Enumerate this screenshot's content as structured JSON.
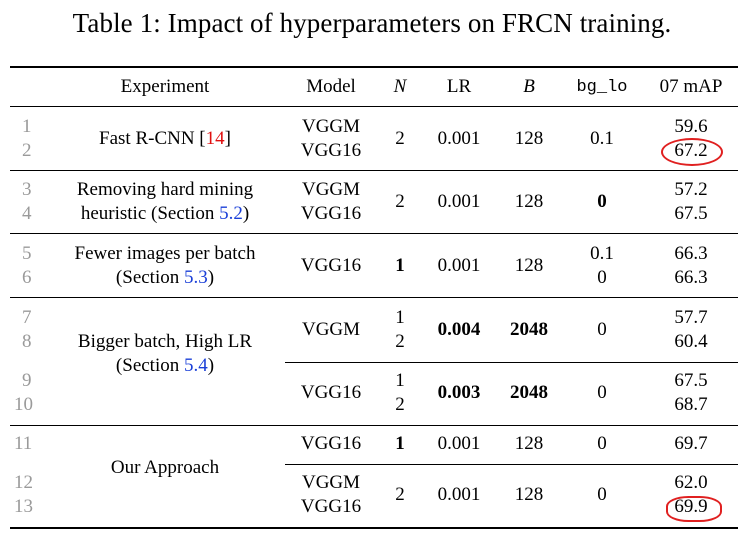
{
  "caption": "Table 1: Impact of hyperparameters on FRCN training.",
  "headers": {
    "experiment": "Experiment",
    "model": "Model",
    "n": "N",
    "lr": "LR",
    "b": "B",
    "bg_lo": "bg_lo",
    "map": "07 mAP"
  },
  "groups": [
    {
      "nums": [
        "1",
        "2"
      ],
      "exp_line1": "Fast R-CNN [",
      "exp_ref": "14",
      "exp_line1_end": "]",
      "models": [
        "VGGM",
        "VGG16"
      ],
      "n": "2",
      "lr": "0.001",
      "b": "128",
      "bg": "0.1",
      "maps": [
        "59.6",
        "67.2"
      ]
    },
    {
      "nums": [
        "3",
        "4"
      ],
      "exp_line1": "Removing hard mining",
      "exp_line2": "heuristic (Section ",
      "exp_ref": "5.2",
      "exp_line2_end": ")",
      "models": [
        "VGGM",
        "VGG16"
      ],
      "n": "2",
      "lr": "0.001",
      "b": "128",
      "bg": "0",
      "maps": [
        "57.2",
        "67.5"
      ]
    },
    {
      "nums": [
        "5",
        "6"
      ],
      "exp_line1": "Fewer images per batch",
      "exp_line2": "(Section ",
      "exp_ref": "5.3",
      "exp_line2_end": ")",
      "model": "VGG16",
      "n": "1",
      "lr": "0.001",
      "b": "128",
      "bgs": [
        "0.1",
        "0"
      ],
      "maps": [
        "66.3",
        "66.3"
      ]
    },
    {
      "nums": [
        "7",
        "8",
        "9",
        "10"
      ],
      "exp_line1": "Bigger batch, High LR",
      "exp_line2": "(Section ",
      "exp_ref": "5.4",
      "exp_line2_end": ")",
      "sub": [
        {
          "model": "VGGM",
          "ns": [
            "1",
            "2"
          ],
          "lr": "0.004",
          "b": "2048",
          "bg": "0",
          "maps": [
            "57.7",
            "60.4"
          ]
        },
        {
          "model": "VGG16",
          "ns": [
            "1",
            "2"
          ],
          "lr": "0.003",
          "b": "2048",
          "bg": "0",
          "maps": [
            "67.5",
            "68.7"
          ]
        }
      ]
    },
    {
      "nums": [
        "11",
        "12",
        "13"
      ],
      "exp_line1": "Our Approach",
      "sub1": {
        "model": "VGG16",
        "n": "1",
        "lr": "0.001",
        "b": "128",
        "bg": "0",
        "map": "69.7"
      },
      "sub2": {
        "models": [
          "VGGM",
          "VGG16"
        ],
        "n": "2",
        "lr": "0.001",
        "b": "128",
        "bg": "0",
        "maps": [
          "62.0",
          "69.9"
        ]
      }
    }
  ]
}
